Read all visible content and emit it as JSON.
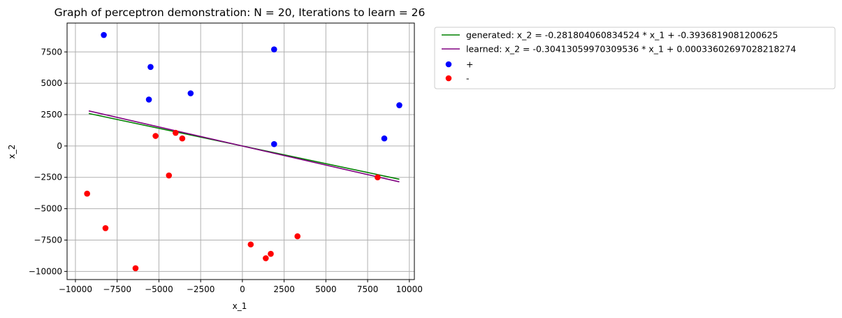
{
  "chart_data": {
    "type": "scatter",
    "title": "Graph of perceptron demonstration: N = 20, Iterations to learn = 26",
    "xlabel": "x_1",
    "ylabel": "x_2",
    "xlim": [
      -10500,
      10300
    ],
    "ylim": [
      -10650,
      9800
    ],
    "xticks": [
      -10000,
      -7500,
      -5000,
      -2500,
      0,
      2500,
      5000,
      7500,
      10000
    ],
    "xtick_labels": [
      "−10000",
      "−7500",
      "−5000",
      "−2500",
      "0",
      "2500",
      "5000",
      "7500",
      "10000"
    ],
    "yticks": [
      -10000,
      -7500,
      -5000,
      -2500,
      0,
      2500,
      5000,
      7500
    ],
    "ytick_labels": [
      "−10000",
      "−7500",
      "−5000",
      "−2500",
      "0",
      "2500",
      "5000",
      "7500"
    ],
    "grid": true,
    "legend_position": "outside-top-right",
    "lines": [
      {
        "name": "generated: x_2 = -0.281804060834524 * x_1 + -0.3936819081200625",
        "slope": -0.281804060834524,
        "intercept": -0.3936819081200625,
        "x_range": [
          -9200,
          9400
        ],
        "color": "#008000"
      },
      {
        "name": "learned: x_2 = -0.30413059970309536 * x_1 + 0.00033602697028218274",
        "slope": -0.30413059970309536,
        "intercept": 0.00033602697028218274,
        "x_range": [
          -9200,
          9400
        ],
        "color": "#800080"
      }
    ],
    "series": [
      {
        "name": "+",
        "color": "#0000ff",
        "points": [
          [
            -8300,
            8850
          ],
          [
            -5500,
            6300
          ],
          [
            -5600,
            3700
          ],
          [
            -3100,
            4200
          ],
          [
            1900,
            7700
          ],
          [
            1900,
            150
          ],
          [
            8500,
            600
          ],
          [
            9400,
            3250
          ]
        ]
      },
      {
        "name": "-",
        "color": "#ff0000",
        "points": [
          [
            -9300,
            -3800
          ],
          [
            -8200,
            -6550
          ],
          [
            -6400,
            -9750
          ],
          [
            -5200,
            800
          ],
          [
            -4000,
            1050
          ],
          [
            -3600,
            600
          ],
          [
            -4400,
            -2350
          ],
          [
            500,
            -7850
          ],
          [
            1400,
            -8950
          ],
          [
            1700,
            -8600
          ],
          [
            3300,
            -7200
          ],
          [
            8100,
            -2500
          ]
        ]
      }
    ]
  }
}
